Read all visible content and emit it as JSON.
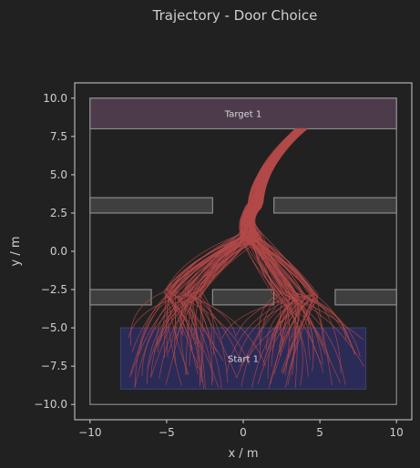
{
  "chart_data": {
    "type": "line",
    "title": "Trajectory - Door Choice",
    "xlabel": "x / m",
    "ylabel": "y / m",
    "xlim": [
      -11,
      11
    ],
    "ylim": [
      -11,
      11
    ],
    "xticks": [
      -10,
      -5,
      0,
      5,
      10
    ],
    "yticks": [
      -10.0,
      -7.5,
      -5.0,
      -2.5,
      0.0,
      2.5,
      5.0,
      7.5,
      10.0
    ],
    "xtick_labels": [
      "−10",
      "−5",
      "0",
      "5",
      "10"
    ],
    "ytick_labels": [
      "−10.0",
      "−7.5",
      "−5.0",
      "−2.5",
      "0.0",
      "2.5",
      "5.0",
      "7.5",
      "10.0"
    ],
    "grid": false,
    "room": {
      "x": [
        -10,
        10
      ],
      "y": [
        -10,
        10
      ]
    },
    "target": {
      "label": "Target 1",
      "x": [
        -10,
        10
      ],
      "y": [
        8,
        10
      ],
      "color": "#4d3a4b"
    },
    "start": {
      "label": "Start 1",
      "x": [
        -8,
        8
      ],
      "y": [
        -9,
        -5
      ],
      "color": "#2b2b58"
    },
    "obstacles": [
      {
        "x": [
          -10,
          -2
        ],
        "y": [
          2.5,
          3.5
        ]
      },
      {
        "x": [
          2,
          10
        ],
        "y": [
          2.5,
          3.5
        ]
      },
      {
        "x": [
          -10,
          -6
        ],
        "y": [
          -3.5,
          -2.5
        ]
      },
      {
        "x": [
          -2,
          2
        ],
        "y": [
          -3.5,
          -2.5
        ]
      },
      {
        "x": [
          6,
          10
        ],
        "y": [
          -3.5,
          -2.5
        ]
      }
    ],
    "trajectory_color": "#b34a4a",
    "trajectory_count": 120,
    "route_waypoints": {
      "exit_point": [
        3.8,
        8.0
      ],
      "upper_door": [
        0.8,
        3.0
      ],
      "junction": [
        0.5,
        1.0
      ],
      "left_door": [
        -4.0,
        -2.8
      ],
      "right_door": [
        3.6,
        -3.0
      ]
    }
  }
}
